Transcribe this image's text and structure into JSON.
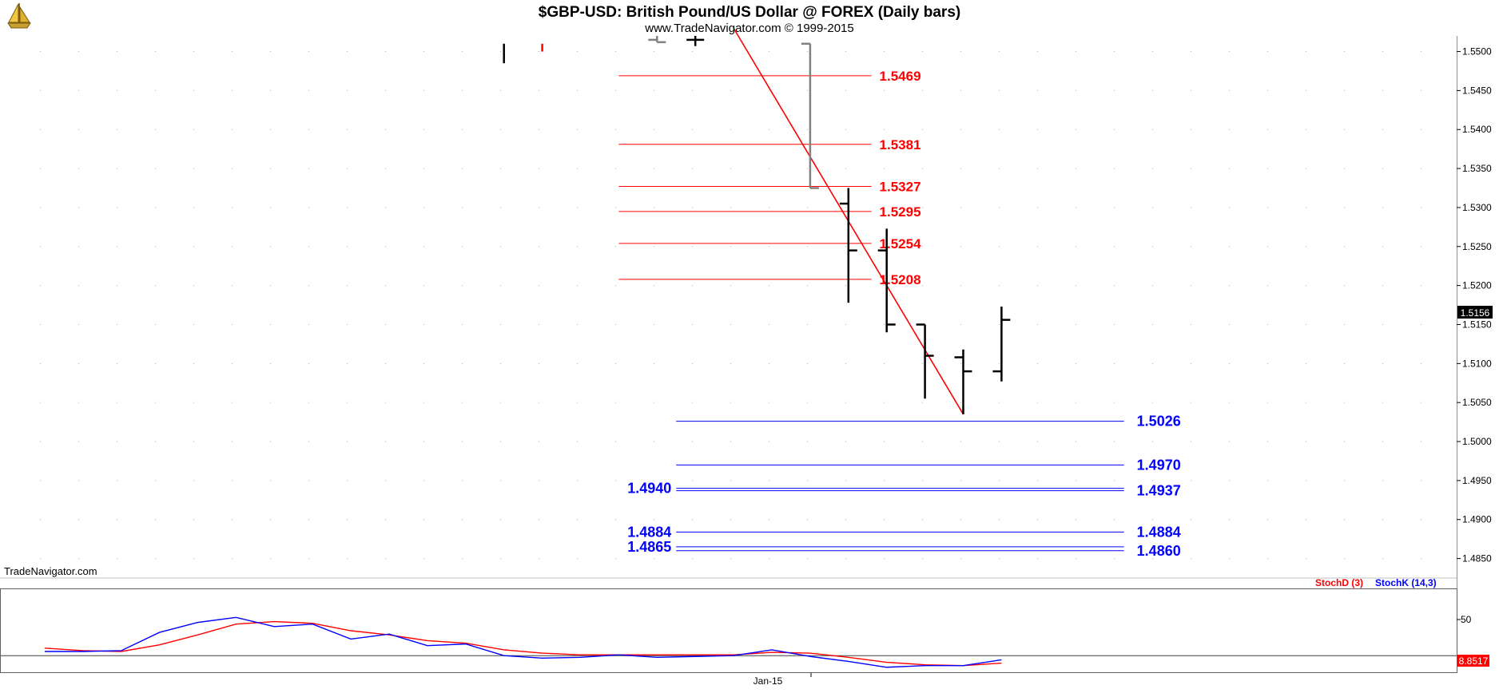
{
  "header": {
    "title": "$GBP-USD:  British Pound/US Dollar @ FOREX  (Daily bars)",
    "subtitle": "www.TradeNavigator.com © 1999-2015",
    "watermark": "TradeNavigator.com",
    "logo_icon": "sailboat-logo-icon"
  },
  "colors": {
    "fib_red": "#ff0000",
    "fib_blue": "#0000ff",
    "bar_black": "#000000",
    "bar_gray": "#808080",
    "stoch_d": "#ff0000",
    "stoch_k": "#0000ff",
    "grid_dot": "#b0b0b0"
  },
  "chart_data": [
    {
      "type": "ohlc",
      "panel": "price",
      "y_range": [
        1.4825,
        1.552
      ],
      "y_ticks": [
        "1.5500",
        "1.5450",
        "1.5400",
        "1.5350",
        "1.5300",
        "1.5250",
        "1.5200",
        "1.5150",
        "1.5100",
        "1.5050",
        "1.5000",
        "1.4950",
        "1.4900",
        "1.4850"
      ],
      "x_tick_label": "Jan-15",
      "last_price_label": "1.5156",
      "bars": [
        {
          "slot": 13,
          "open": null,
          "high": 1.551,
          "low": 1.5485,
          "close": null,
          "color": "black"
        },
        {
          "slot": 14,
          "open": null,
          "high": 1.551,
          "low": 1.55,
          "close": null,
          "color": "red"
        },
        {
          "slot": 17,
          "open": 1.5515,
          "high": 1.552,
          "low": 1.5512,
          "close": 1.5512,
          "color": "gray"
        },
        {
          "slot": 18,
          "open": 1.5515,
          "high": 1.552,
          "low": 1.5507,
          "close": 1.5515,
          "color": "black"
        },
        {
          "slot": 21,
          "open": 1.551,
          "high": 1.551,
          "low": 1.5325,
          "close": 1.5325,
          "color": "gray"
        },
        {
          "slot": 22,
          "open": 1.5305,
          "high": 1.5325,
          "low": 1.5178,
          "close": 1.5245,
          "color": "black"
        },
        {
          "slot": 23,
          "open": 1.5245,
          "high": 1.5273,
          "low": 1.514,
          "close": 1.515,
          "color": "black"
        },
        {
          "slot": 24,
          "open": 1.515,
          "high": 1.515,
          "low": 1.5055,
          "close": 1.511,
          "color": "black"
        },
        {
          "slot": 25,
          "open": 1.5108,
          "high": 1.5118,
          "low": 1.5035,
          "close": 1.509,
          "color": "black"
        },
        {
          "slot": 26,
          "open": 1.509,
          "high": 1.5173,
          "low": 1.5077,
          "close": 1.5156,
          "color": "black"
        }
      ],
      "trend_line": {
        "from": {
          "slot": 19,
          "price": 1.553
        },
        "to": {
          "slot": 25,
          "price": 1.5035
        }
      },
      "fib_levels_red": [
        "1.5469",
        "1.5381",
        "1.5327",
        "1.5295",
        "1.5254",
        "1.5208"
      ],
      "fib_levels_blue_right": [
        "1.5026",
        "1.4970",
        "1.4937",
        "1.4884",
        "1.4860"
      ],
      "fib_levels_blue_left": [
        "1.4940",
        "1.4884",
        "1.4865"
      ]
    },
    {
      "type": "line",
      "panel": "stochastic",
      "y_range": [
        0,
        100
      ],
      "y_tick": "50",
      "reference_level": 20,
      "value_label": "8.8517",
      "legend": [
        {
          "name": "StochD (3)",
          "color": "#ff0000"
        },
        {
          "name": "StochK (14,3)",
          "color": "#0000ff"
        }
      ],
      "series": [
        {
          "name": "StochD (3)",
          "color": "#ff0000",
          "values": [
            [
              1,
              29
            ],
            [
              2,
              26
            ],
            [
              3,
              25
            ],
            [
              4,
              33
            ],
            [
              5,
              45
            ],
            [
              6,
              58
            ],
            [
              7,
              61
            ],
            [
              8,
              59
            ],
            [
              9,
              50
            ],
            [
              10,
              45
            ],
            [
              11,
              38
            ],
            [
              12,
              35
            ],
            [
              13,
              27
            ],
            [
              14,
              23
            ],
            [
              15,
              21
            ],
            [
              16,
              21
            ],
            [
              17,
              21
            ],
            [
              18,
              21
            ],
            [
              19,
              21
            ],
            [
              20,
              24
            ],
            [
              21,
              23
            ],
            [
              22,
              18
            ],
            [
              23,
              12
            ],
            [
              24,
              9
            ],
            [
              25,
              8
            ],
            [
              26,
              11
            ]
          ]
        },
        {
          "name": "StochK (14,3)",
          "color": "#0000ff",
          "values": [
            [
              1,
              25
            ],
            [
              2,
              25
            ],
            [
              3,
              26
            ],
            [
              4,
              48
            ],
            [
              5,
              60
            ],
            [
              6,
              66
            ],
            [
              7,
              55
            ],
            [
              8,
              58
            ],
            [
              9,
              40
            ],
            [
              10,
              46
            ],
            [
              11,
              32
            ],
            [
              12,
              34
            ],
            [
              13,
              20
            ],
            [
              14,
              17
            ],
            [
              15,
              18
            ],
            [
              16,
              21
            ],
            [
              17,
              18
            ],
            [
              18,
              19
            ],
            [
              19,
              20
            ],
            [
              20,
              27
            ],
            [
              21,
              19
            ],
            [
              22,
              13
            ],
            [
              23,
              6
            ],
            [
              24,
              8
            ],
            [
              25,
              8
            ],
            [
              26,
              15
            ]
          ]
        }
      ]
    }
  ]
}
